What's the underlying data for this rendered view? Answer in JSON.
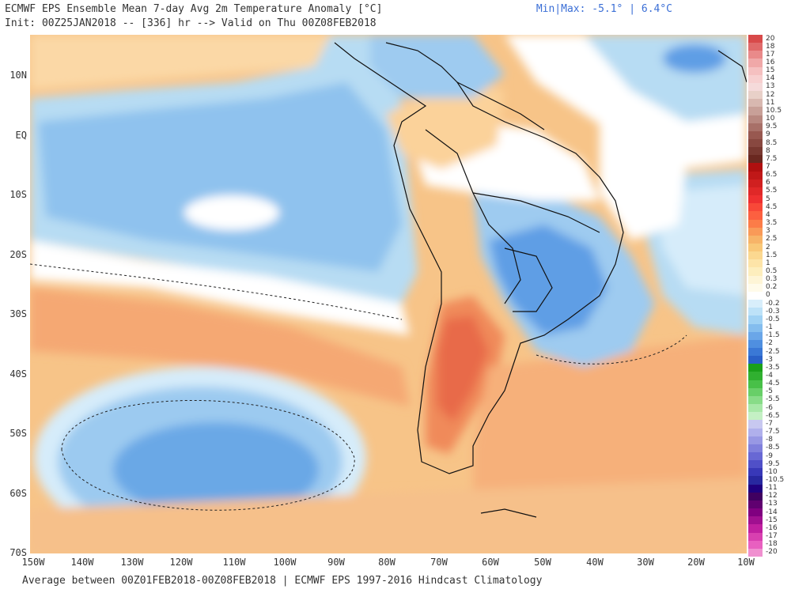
{
  "header": {
    "title": "ECMWF EPS Ensemble Mean 7-day Avg 2m Temperature Anomaly [°C]",
    "init_line": "Init: 00Z25JAN2018 -- [336] hr --> Valid on Thu 00Z08FEB2018",
    "minmax": "Min|Max: -5.1° | 6.4°C"
  },
  "footer": "Average between 00Z01FEB2018-00Z08FEB2018 | ECMWF EPS 1997-2016 Hindcast Climatology",
  "axes": {
    "lat_labels": [
      "10N",
      "EQ",
      "10S",
      "20S",
      "30S",
      "40S",
      "50S",
      "60S",
      "70S"
    ],
    "lon_labels": [
      "150W",
      "140W",
      "130W",
      "120W",
      "110W",
      "100W",
      "90W",
      "80W",
      "70W",
      "60W",
      "50W",
      "40W",
      "30W",
      "20W",
      "10W"
    ]
  },
  "colorbar": {
    "labels": [
      "20",
      "18",
      "17",
      "16",
      "15",
      "14",
      "13",
      "12",
      "11",
      "10.5",
      "10",
      "9.5",
      "9",
      "8.5",
      "8",
      "7.5",
      "7",
      "6.5",
      "6",
      "5.5",
      "5",
      "4.5",
      "4",
      "3.5",
      "3",
      "2.5",
      "2",
      "1.5",
      "1",
      "0.5",
      "0.3",
      "0.2",
      "0",
      "-0.2",
      "-0.3",
      "-0.5",
      "-1",
      "-1.5",
      "-2",
      "-2.5",
      "-3",
      "-3.5",
      "-4",
      "-4.5",
      "-5",
      "-5.5",
      "-6",
      "-6.5",
      "-7",
      "-7.5",
      "-8",
      "-8.5",
      "-9",
      "-9.5",
      "-10",
      "-10.5",
      "-11",
      "-12",
      "-13",
      "-14",
      "-15",
      "-16",
      "-17",
      "-18",
      "-20"
    ],
    "colors": [
      "#d84a4a",
      "#e06a6a",
      "#e98a8a",
      "#f0a8a8",
      "#f5c0c0",
      "#f7d0d0",
      "#f5dada",
      "#e8d0c8",
      "#d8b8b0",
      "#c8a098",
      "#b88880",
      "#a87068",
      "#985850",
      "#884840",
      "#783830",
      "#6a2820",
      "#b01010",
      "#c01818",
      "#d02020",
      "#e02828",
      "#ee3030",
      "#f84838",
      "#fc6040",
      "#fc7c48",
      "#f99a58",
      "#f7b468",
      "#f9c878",
      "#fbd890",
      "#fde4a8",
      "#fdeebd",
      "#fef5d6",
      "#fffbea",
      "#ffffff",
      "#d8eefb",
      "#bde2f8",
      "#a0d2f4",
      "#84bdee",
      "#6aa6e8",
      "#4f8fe0",
      "#3a78d6",
      "#2a62c8",
      "#1aa01a",
      "#30b030",
      "#48c048",
      "#68cf68",
      "#88dc88",
      "#a8e8a8",
      "#c4f0c4",
      "#c8c8f0",
      "#b0b0ec",
      "#9898e4",
      "#8080dc",
      "#6868d4",
      "#5050c8",
      "#3838b8",
      "#2828a0",
      "#200080",
      "#400060",
      "#600070",
      "#800080",
      "#a01090",
      "#c020a0",
      "#d840b0",
      "#e860c0",
      "#f090d0"
    ]
  }
}
